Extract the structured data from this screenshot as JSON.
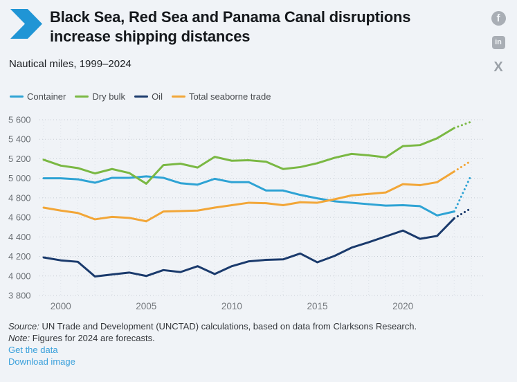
{
  "header": {
    "title_line1": "Black Sea, Red Sea and Panama Canal disruptions",
    "title_line2": "increase shipping distances",
    "subtitle": "Nautical miles, 1999–2024",
    "social": [
      {
        "name": "facebook-icon",
        "glyph": "f"
      },
      {
        "name": "linkedin-icon",
        "glyph": "in"
      },
      {
        "name": "x-icon",
        "glyph": "X"
      }
    ]
  },
  "colors": {
    "accent_blue": "#2095d5",
    "link_blue": "#3aa0db",
    "icon_gray": "#a9aeb5",
    "background": "#f0f3f7"
  },
  "chart_data": {
    "type": "line",
    "title": "Black Sea, Red Sea and Panama Canal disruptions increase shipping distances",
    "subtitle": "Nautical miles, 1999–2024",
    "ylabel": "Nautical miles",
    "x": [
      1999,
      2000,
      2001,
      2002,
      2003,
      2004,
      2005,
      2006,
      2007,
      2008,
      2009,
      2010,
      2011,
      2012,
      2013,
      2014,
      2015,
      2016,
      2017,
      2018,
      2019,
      2020,
      2021,
      2022,
      2023,
      2024
    ],
    "xticks": [
      2000,
      2005,
      2010,
      2015,
      2020
    ],
    "ylim": [
      3800,
      5600
    ],
    "yticks": [
      3800,
      4000,
      4200,
      4400,
      4600,
      4800,
      5000,
      5200,
      5400,
      5600
    ],
    "ytick_labels": [
      "3 800",
      "4 000",
      "4 200",
      "4 400",
      "4 600",
      "4 800",
      "5 000",
      "5 200",
      "5 400",
      "5 600"
    ],
    "grid": "dotted",
    "legend_position": "top",
    "forecast_note": "Last segment (2023 to 2024) is dotted: 2024 values are forecasts",
    "series": [
      {
        "name": "Container",
        "color": "#2ea3d4",
        "values": [
          5000,
          5000,
          4990,
          4955,
          5005,
          5005,
          5020,
          5005,
          4950,
          4935,
          4995,
          4960,
          4960,
          4875,
          4875,
          4830,
          4795,
          4765,
          4750,
          4735,
          4720,
          4725,
          4715,
          4620,
          4660,
          5035
        ]
      },
      {
        "name": "Dry bulk",
        "color": "#7ab843",
        "values": [
          5190,
          5130,
          5105,
          5050,
          5095,
          5055,
          4945,
          5135,
          5150,
          5110,
          5220,
          5180,
          5185,
          5170,
          5095,
          5115,
          5155,
          5210,
          5250,
          5235,
          5215,
          5330,
          5340,
          5410,
          5515,
          5580
        ]
      },
      {
        "name": "Oil",
        "color": "#1a3a6c",
        "values": [
          4190,
          4160,
          4145,
          3995,
          4015,
          4035,
          4000,
          4060,
          4040,
          4100,
          4020,
          4100,
          4150,
          4165,
          4170,
          4230,
          4140,
          4205,
          4290,
          4345,
          4405,
          4465,
          4380,
          4410,
          4590,
          4695
        ]
      },
      {
        "name": "Total seaborne trade",
        "color": "#f2a637",
        "values": [
          4700,
          4670,
          4645,
          4580,
          4605,
          4595,
          4560,
          4660,
          4665,
          4670,
          4700,
          4725,
          4750,
          4745,
          4725,
          4755,
          4750,
          4785,
          4825,
          4840,
          4855,
          4940,
          4930,
          4960,
          5070,
          5180
        ]
      }
    ]
  },
  "footer": {
    "source_label": "Source:",
    "source_text": "UN Trade and Development (UNCTAD) calculations, based on data from Clarksons Research.",
    "note_label": "Note:",
    "note_text": "Figures for 2024 are forecasts.",
    "links": [
      {
        "label": "Get the data"
      },
      {
        "label": "Download image"
      }
    ]
  }
}
